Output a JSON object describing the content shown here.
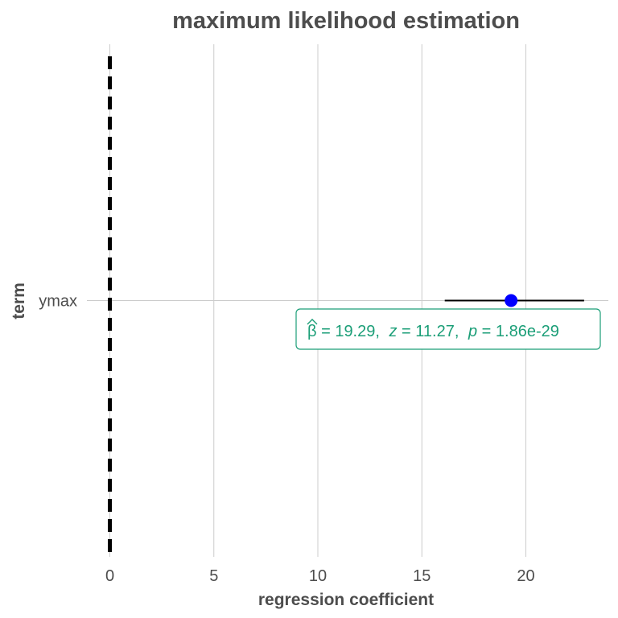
{
  "chart_data": {
    "type": "scatter",
    "title": "maximum likelihood estimation",
    "xlabel": "regression coefficient",
    "ylabel": "term",
    "xlim": [
      0,
      24
    ],
    "x_ticks": [
      0,
      5,
      10,
      15,
      20
    ],
    "x_tick_labels": [
      "0",
      "5",
      "10",
      "15",
      "20"
    ],
    "categories": [
      "ymax"
    ],
    "grid": true,
    "reference_line": {
      "x": 0,
      "style": "dashed"
    },
    "points": [
      {
        "term": "ymax",
        "estimate": 19.29,
        "conf_low": 16.1,
        "conf_high": 22.8
      }
    ],
    "annotation": {
      "beta_symbol": "β",
      "beta_value": "= 19.29,",
      "z_symbol": "z",
      "z_value": "= 11.27,",
      "p_symbol": "p",
      "p_value": "= 1.86e-29"
    },
    "colors": {
      "point": "#0000ff",
      "annotation": "#1b9e77",
      "errorbar": "#000000",
      "reference_line": "#000000",
      "grid": "#cccccc",
      "text": "#4d4d4d"
    }
  }
}
